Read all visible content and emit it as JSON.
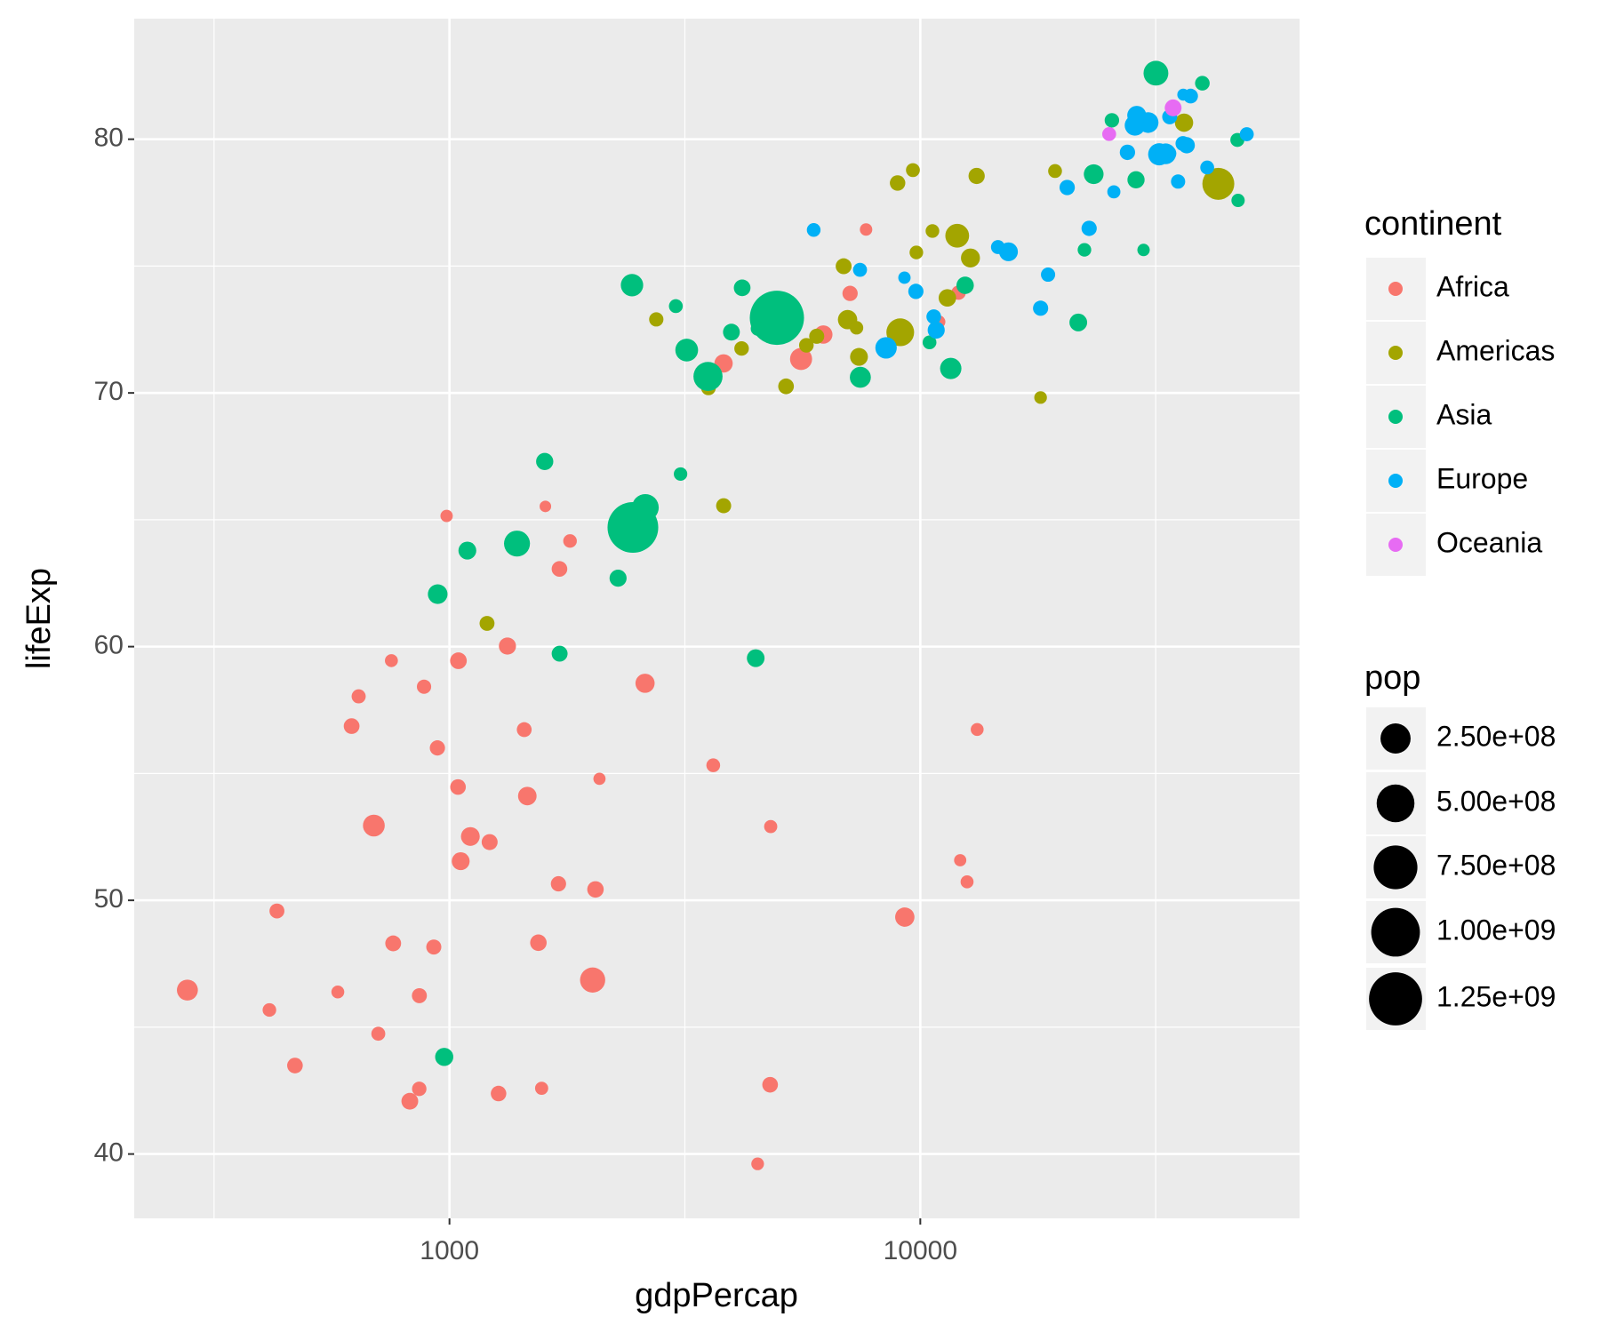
{
  "chart_data": {
    "type": "scatter",
    "x_label": "gdpPercap",
    "y_label": "lifeExp",
    "xlog": true,
    "grid": true,
    "xlim": [
      214,
      63900
    ],
    "xticks": [
      1000,
      10000
    ],
    "xminor_ticks": [
      316.2,
      3162,
      31623
    ],
    "ylim": [
      37.464,
      84.752
    ],
    "yticks": [
      40,
      50,
      60,
      70,
      80
    ],
    "yminor_ticks": [
      45,
      55,
      65,
      75
    ],
    "color_legend_title": "continent",
    "size_legend_title": "pop",
    "size_legend": [
      {
        "value": 250000000,
        "label": "2.50e+08"
      },
      {
        "value": 500000000,
        "label": "5.00e+08"
      },
      {
        "value": 750000000,
        "label": "7.50e+08"
      },
      {
        "value": 1000000000,
        "label": "1.00e+09"
      },
      {
        "value": 1250000000,
        "label": "1.25e+09"
      }
    ],
    "series": [
      {
        "name": "Africa",
        "color": "#F8766D",
        "x": [
          6223.367,
          4797.231,
          1441.285,
          12569.85,
          1217.033,
          430.0707,
          2042.095,
          706.0165,
          1704.064,
          986.1479,
          277.5519,
          3632.558,
          1544.75,
          2082.482,
          5581.181,
          12154.09,
          641.3695,
          690.8056,
          13206.48,
          752.7497,
          1327.609,
          942.6542,
          579.2317,
          1463.249,
          1569.331,
          414.5073,
          12057.5,
          1044.77,
          759.3499,
          1042.582,
          1803.151,
          10956.99,
          3820.175,
          823.6856,
          4811.06,
          619.6769,
          2013.977,
          7670.123,
          863.0885,
          1598.435,
          1712.472,
          862.5408,
          926.1411,
          9269.658,
          2602.395,
          4513.481,
          1107.482,
          882.9699,
          7092.923,
          1056.38,
          1271.212,
          469.7093
        ],
        "values": [
          72.301,
          42.731,
          56.728,
          50.728,
          52.295,
          49.58,
          50.43,
          44.741,
          50.651,
          65.152,
          46.462,
          55.322,
          48.328,
          54.791,
          71.338,
          51.579,
          58.04,
          52.947,
          56.735,
          59.448,
          60.022,
          56.007,
          46.388,
          54.11,
          42.592,
          45.678,
          73.952,
          59.443,
          48.303,
          54.467,
          64.164,
          72.801,
          71.164,
          42.082,
          52.906,
          56.867,
          46.859,
          76.442,
          46.242,
          65.528,
          63.062,
          42.568,
          48.159,
          49.339,
          58.556,
          39.613,
          52.517,
          58.42,
          73.923,
          51.542,
          42.384,
          43.487
        ],
        "sizes": [
          33333216,
          12420476,
          8078314,
          1639131,
          14326203,
          8390505,
          17696293,
          4369038,
          10238807,
          710960,
          64606759,
          3800610,
          18013409,
          496374,
          80264543,
          551201,
          4906585,
          76511887,
          1454867,
          1688359,
          22873338,
          9947814,
          1472041,
          35610177,
          2012649,
          3193942,
          6036914,
          19167654,
          13327079,
          12031795,
          3270065,
          1250882,
          33757175,
          19951656,
          2055080,
          12894865,
          135031164,
          798094,
          8860588,
          199579,
          12267493,
          6144562,
          9118773,
          43997828,
          42292929,
          1133066,
          38139640,
          5701579,
          10276158,
          29170398,
          11746035,
          12311143
        ]
      },
      {
        "name": "Americas",
        "color": "#A3A500",
        "x": [
          12779.38,
          3822.137,
          9065.801,
          36319.24,
          13171.64,
          7006.58,
          9645.061,
          8948.103,
          6025.375,
          6873.262,
          5728.354,
          5186.05,
          1201.637,
          3548.331,
          7320.88,
          11977.57,
          2749.321,
          9809.186,
          4172.838,
          7408.906,
          19328.71,
          18008.51,
          42951.65,
          10611.46,
          11415.81
        ],
        "values": [
          75.32,
          65.554,
          72.39,
          80.653,
          78.553,
          72.889,
          78.782,
          78.273,
          72.235,
          74.994,
          71.878,
          70.259,
          60.916,
          70.198,
          72.567,
          76.195,
          72.899,
          75.537,
          71.752,
          71.421,
          78.746,
          69.819,
          78.242,
          76.384,
          73.747
        ],
        "sizes": [
          40301927,
          9119152,
          190010647,
          33390141,
          16284741,
          44227550,
          4133884,
          11416987,
          9319622,
          13755680,
          6939688,
          12572928,
          8502814,
          7483763,
          2780132,
          108700891,
          5675356,
          3242173,
          6667147,
          28674757,
          3942491,
          1056608,
          301139947,
          3447496,
          26084662
        ]
      },
      {
        "name": "Asia",
        "color": "#00BF7D",
        "x": [
          974.5803,
          29796.05,
          1391.254,
          1713.779,
          4959.115,
          39724.98,
          2452.21,
          3540.652,
          11605.71,
          4471.062,
          25523.28,
          31656.07,
          4519.461,
          1593.065,
          23348.14,
          47306.99,
          10461.06,
          12451.66,
          3095.772,
          944,
          1091.36,
          22316.19,
          2605.948,
          3190.481,
          21654.83,
          47143.18,
          3970.095,
          4184.548,
          28718.28,
          7458.396,
          2441.577,
          3025.35,
          2280.77
        ],
        "values": [
          43.828,
          75.635,
          64.062,
          59.723,
          72.961,
          82.208,
          64.698,
          70.65,
          70.964,
          59.545,
          80.745,
          82.603,
          72.535,
          67.297,
          78.623,
          77.588,
          71.993,
          74.241,
          66.803,
          62.069,
          63.785,
          75.64,
          65.483,
          71.688,
          72.777,
          79.972,
          72.396,
          74.143,
          78.4,
          70.616,
          74.249,
          73.422,
          62.698
        ],
        "sizes": [
          31889923,
          708573,
          150448339,
          14131858,
          1318683096,
          6980412,
          1110396331,
          223547000,
          69453570,
          27499638,
          6426679,
          127467972,
          6053193,
          23301725,
          49044790,
          2505559,
          3921278,
          24821286,
          2874127,
          47761980,
          28901790,
          3204897,
          169270617,
          91077287,
          27601038,
          4553009,
          20378239,
          19314747,
          23174294,
          65068149,
          85262356,
          4018332,
          22211743
        ]
      },
      {
        "name": "Europe",
        "color": "#00B0F6",
        "x": [
          5937.03,
          36126.49,
          33692.61,
          7446.299,
          10680.79,
          14619.22,
          22833.31,
          35278.42,
          33207.08,
          30470.02,
          32170.37,
          27538.41,
          18008.94,
          36180.79,
          40676,
          28569.72,
          9253.896,
          36797.93,
          49357.19,
          15389.92,
          20509.65,
          10808.48,
          9786.535,
          18678.31,
          25768.26,
          28821.06,
          33859.75,
          37506.42,
          8458.276,
          33203.26
        ],
        "values": [
          76.423,
          79.829,
          79.441,
          74.852,
          73.005,
          75.748,
          76.486,
          78.332,
          79.313,
          80.657,
          79.406,
          79.483,
          73.338,
          81.757,
          78.885,
          80.546,
          74.543,
          79.762,
          80.196,
          75.563,
          78.098,
          72.476,
          74.002,
          74.663,
          77.926,
          80.941,
          80.884,
          81.701,
          71.777,
          79.425
        ],
        "sizes": [
          3600523,
          8199783,
          10392226,
          4552198,
          7322858,
          4493312,
          10228744,
          5468120,
          5238460,
          61083916,
          82400996,
          10706290,
          9956108,
          301931,
          4109086,
          58147733,
          684736,
          16570613,
          4627926,
          38518241,
          10642836,
          22276056,
          10150265,
          5447502,
          2009245,
          40448191,
          9031088,
          7554661,
          71158647,
          60776238
        ]
      },
      {
        "name": "Oceania",
        "color": "#E76BF3",
        "x": [
          34435.37,
          25185.01
        ],
        "values": [
          81.235,
          80.204
        ],
        "sizes": [
          20434176,
          4115771
        ]
      }
    ]
  }
}
